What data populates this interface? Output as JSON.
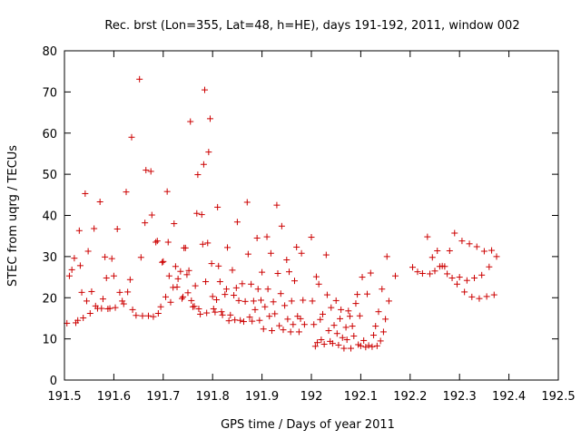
{
  "chart_data": {
    "type": "scatter",
    "title": "Rec. brst (Lon=355, Lat=48, h=HE), days 191-192, 2011, window 002",
    "xlabel": "GPS time / Days of year 2011",
    "ylabel": "STEC from uqrg / TECUs",
    "xlim": [
      191.5,
      192.5
    ],
    "ylim": [
      0,
      80
    ],
    "x_ticks": [
      "191.5",
      "191.6",
      "191.7",
      "191.8",
      "191.9",
      "192",
      "192.1",
      "192.2",
      "192.3",
      "192.4",
      "192.5"
    ],
    "y_ticks": [
      "0",
      "10",
      "20",
      "30",
      "40",
      "50",
      "60",
      "70",
      "80"
    ],
    "grid": false,
    "legend": "none",
    "marker": "plus",
    "color": "#cc0000",
    "series": [
      {
        "points": [
          [
            191.505,
            13.8
          ],
          [
            191.51,
            25.3
          ],
          [
            191.515,
            26.8
          ],
          [
            191.52,
            29.6
          ],
          [
            191.523,
            13.9
          ],
          [
            191.527,
            14.5
          ],
          [
            191.53,
            36.3
          ],
          [
            191.532,
            27.8
          ],
          [
            191.535,
            21.3
          ],
          [
            191.538,
            15.1
          ],
          [
            191.542,
            45.3
          ],
          [
            191.545,
            19.2
          ],
          [
            191.548,
            31.3
          ],
          [
            191.552,
            16.2
          ],
          [
            191.555,
            21.5
          ],
          [
            191.56,
            36.8
          ],
          [
            191.563,
            18.0
          ],
          [
            191.567,
            17.4
          ],
          [
            191.572,
            43.3
          ],
          [
            191.575,
            17.4
          ],
          [
            191.578,
            19.7
          ],
          [
            191.582,
            29.9
          ],
          [
            191.585,
            24.8
          ],
          [
            191.588,
            17.3
          ],
          [
            191.592,
            17.4
          ],
          [
            191.596,
            29.5
          ],
          [
            191.6,
            25.3
          ],
          [
            191.603,
            17.6
          ],
          [
            191.607,
            36.7
          ],
          [
            191.612,
            21.3
          ],
          [
            191.617,
            19.2
          ],
          [
            191.62,
            18.5
          ],
          [
            191.625,
            45.7
          ],
          [
            191.628,
            21.4
          ],
          [
            191.633,
            24.4
          ],
          [
            191.636,
            59.0
          ],
          [
            191.638,
            17.1
          ],
          [
            191.645,
            15.7
          ],
          [
            191.652,
            73.1
          ],
          [
            191.655,
            29.8
          ],
          [
            191.658,
            15.6
          ],
          [
            191.663,
            38.2
          ],
          [
            191.665,
            51.0
          ],
          [
            191.67,
            15.6
          ],
          [
            191.675,
            50.7
          ],
          [
            191.677,
            40.1
          ],
          [
            191.68,
            15.4
          ],
          [
            191.685,
            33.5
          ],
          [
            191.688,
            33.8
          ],
          [
            191.69,
            16.2
          ],
          [
            191.695,
            17.8
          ],
          [
            191.698,
            28.6
          ],
          [
            191.7,
            28.8
          ],
          [
            191.705,
            20.2
          ],
          [
            191.708,
            45.8
          ],
          [
            191.71,
            33.5
          ],
          [
            191.712,
            25.3
          ],
          [
            191.715,
            18.9
          ],
          [
            191.72,
            22.5
          ],
          [
            191.722,
            38.0
          ],
          [
            191.725,
            27.6
          ],
          [
            191.728,
            22.6
          ],
          [
            191.73,
            24.6
          ],
          [
            191.735,
            26.4
          ],
          [
            191.738,
            19.8
          ],
          [
            191.74,
            20.2
          ],
          [
            191.742,
            32.1
          ],
          [
            191.745,
            32.1
          ],
          [
            191.748,
            25.6
          ],
          [
            191.75,
            21.2
          ],
          [
            191.752,
            26.6
          ],
          [
            191.755,
            62.8
          ],
          [
            191.757,
            19.3
          ],
          [
            191.76,
            17.8
          ],
          [
            191.763,
            17.9
          ],
          [
            191.765,
            22.9
          ],
          [
            191.768,
            40.5
          ],
          [
            191.77,
            49.9
          ],
          [
            191.772,
            17.3
          ],
          [
            191.775,
            16.0
          ],
          [
            191.778,
            40.2
          ],
          [
            191.78,
            33.0
          ],
          [
            191.782,
            52.4
          ],
          [
            191.784,
            70.5
          ],
          [
            191.786,
            23.9
          ],
          [
            191.788,
            16.3
          ],
          [
            191.79,
            33.3
          ],
          [
            191.792,
            55.4
          ],
          [
            191.795,
            63.5
          ],
          [
            191.798,
            28.3
          ],
          [
            191.8,
            20.3
          ],
          [
            191.802,
            17.3
          ],
          [
            191.805,
            16.5
          ],
          [
            191.808,
            19.5
          ],
          [
            191.81,
            42.0
          ],
          [
            191.812,
            27.7
          ],
          [
            191.815,
            23.9
          ],
          [
            191.818,
            16.6
          ],
          [
            191.82,
            15.8
          ],
          [
            191.825,
            20.8
          ],
          [
            191.828,
            22.1
          ],
          [
            191.83,
            32.2
          ],
          [
            191.833,
            14.4
          ],
          [
            191.836,
            15.8
          ],
          [
            191.84,
            26.7
          ],
          [
            191.843,
            20.6
          ],
          [
            191.845,
            14.6
          ],
          [
            191.848,
            22.4
          ],
          [
            191.85,
            38.4
          ],
          [
            191.853,
            19.3
          ],
          [
            191.856,
            14.5
          ],
          [
            191.86,
            23.4
          ],
          [
            191.863,
            14.2
          ],
          [
            191.866,
            19.1
          ],
          [
            191.87,
            43.2
          ],
          [
            191.872,
            30.6
          ],
          [
            191.875,
            15.3
          ],
          [
            191.878,
            23.3
          ],
          [
            191.88,
            14.3
          ],
          [
            191.883,
            19.2
          ],
          [
            191.886,
            17.1
          ],
          [
            191.89,
            34.5
          ],
          [
            191.892,
            22.1
          ],
          [
            191.895,
            14.5
          ],
          [
            191.898,
            19.4
          ],
          [
            191.9,
            26.2
          ],
          [
            191.903,
            12.4
          ],
          [
            191.906,
            17.8
          ],
          [
            191.91,
            34.8
          ],
          [
            191.912,
            22.1
          ],
          [
            191.915,
            15.5
          ],
          [
            191.918,
            30.8
          ],
          [
            191.92,
            12.0
          ],
          [
            191.923,
            19.0
          ],
          [
            191.926,
            16.1
          ],
          [
            191.93,
            42.5
          ],
          [
            191.932,
            25.9
          ],
          [
            191.935,
            13.2
          ],
          [
            191.938,
            21.0
          ],
          [
            191.94,
            37.4
          ],
          [
            191.943,
            12.2
          ],
          [
            191.946,
            18.1
          ],
          [
            191.95,
            29.2
          ],
          [
            191.952,
            14.8
          ],
          [
            191.955,
            26.3
          ],
          [
            191.958,
            11.7
          ],
          [
            191.96,
            19.2
          ],
          [
            191.963,
            13.5
          ],
          [
            191.966,
            24.1
          ],
          [
            191.97,
            32.3
          ],
          [
            191.972,
            15.5
          ],
          [
            191.975,
            11.7
          ],
          [
            191.978,
            14.9
          ],
          [
            191.98,
            30.8
          ],
          [
            191.983,
            19.4
          ],
          [
            191.986,
            13.5
          ],
          [
            192.0,
            34.7
          ],
          [
            192.002,
            19.2
          ],
          [
            192.005,
            13.5
          ],
          [
            192.008,
            8.2
          ],
          [
            192.01,
            25.1
          ],
          [
            192.012,
            9.1
          ],
          [
            192.015,
            23.3
          ],
          [
            192.018,
            14.7
          ],
          [
            192.02,
            9.8
          ],
          [
            192.023,
            16.0
          ],
          [
            192.026,
            8.7
          ],
          [
            192.03,
            30.4
          ],
          [
            192.032,
            20.7
          ],
          [
            192.035,
            12.0
          ],
          [
            192.038,
            9.4
          ],
          [
            192.04,
            17.6
          ],
          [
            192.043,
            8.9
          ],
          [
            192.046,
            13.3
          ],
          [
            192.05,
            19.3
          ],
          [
            192.052,
            11.3
          ],
          [
            192.055,
            8.5
          ],
          [
            192.058,
            14.9
          ],
          [
            192.06,
            17.1
          ],
          [
            192.063,
            10.3
          ],
          [
            192.066,
            7.7
          ],
          [
            192.07,
            12.8
          ],
          [
            192.072,
            9.8
          ],
          [
            192.075,
            16.8
          ],
          [
            192.078,
            15.5
          ],
          [
            192.08,
            7.7
          ],
          [
            192.083,
            13.1
          ],
          [
            192.086,
            10.7
          ],
          [
            192.09,
            18.6
          ],
          [
            192.093,
            20.8
          ],
          [
            192.095,
            8.6
          ],
          [
            192.098,
            15.6
          ],
          [
            192.1,
            8.3
          ],
          [
            192.103,
            25.0
          ],
          [
            192.106,
            9.6
          ],
          [
            192.11,
            8.0
          ],
          [
            192.113,
            20.9
          ],
          [
            192.116,
            8.4
          ],
          [
            192.12,
            26.0
          ],
          [
            192.123,
            8.1
          ],
          [
            192.126,
            10.9
          ],
          [
            192.13,
            13.1
          ],
          [
            192.133,
            8.3
          ],
          [
            192.136,
            16.6
          ],
          [
            192.14,
            9.5
          ],
          [
            192.143,
            22.1
          ],
          [
            192.146,
            11.7
          ],
          [
            192.15,
            14.8
          ],
          [
            192.153,
            30.0
          ],
          [
            192.157,
            19.2
          ],
          [
            192.17,
            25.3
          ],
          [
            192.205,
            27.4
          ],
          [
            192.215,
            26.3
          ],
          [
            192.225,
            25.9
          ],
          [
            192.235,
            34.8
          ],
          [
            192.24,
            25.8
          ],
          [
            192.245,
            29.8
          ],
          [
            192.25,
            26.5
          ],
          [
            192.255,
            31.4
          ],
          [
            192.26,
            27.6
          ],
          [
            192.265,
            27.7
          ],
          [
            192.27,
            27.6
          ],
          [
            192.275,
            25.8
          ],
          [
            192.28,
            31.4
          ],
          [
            192.285,
            24.8
          ],
          [
            192.29,
            35.7
          ],
          [
            192.295,
            23.3
          ],
          [
            192.3,
            25.0
          ],
          [
            192.305,
            33.8
          ],
          [
            192.31,
            21.4
          ],
          [
            192.315,
            24.2
          ],
          [
            192.32,
            33.1
          ],
          [
            192.325,
            20.2
          ],
          [
            192.33,
            24.8
          ],
          [
            192.335,
            32.4
          ],
          [
            192.34,
            19.8
          ],
          [
            192.345,
            25.5
          ],
          [
            192.35,
            31.3
          ],
          [
            192.355,
            20.3
          ],
          [
            192.36,
            27.5
          ],
          [
            192.365,
            31.5
          ],
          [
            192.37,
            20.7
          ],
          [
            192.375,
            30.0
          ]
        ]
      }
    ]
  }
}
